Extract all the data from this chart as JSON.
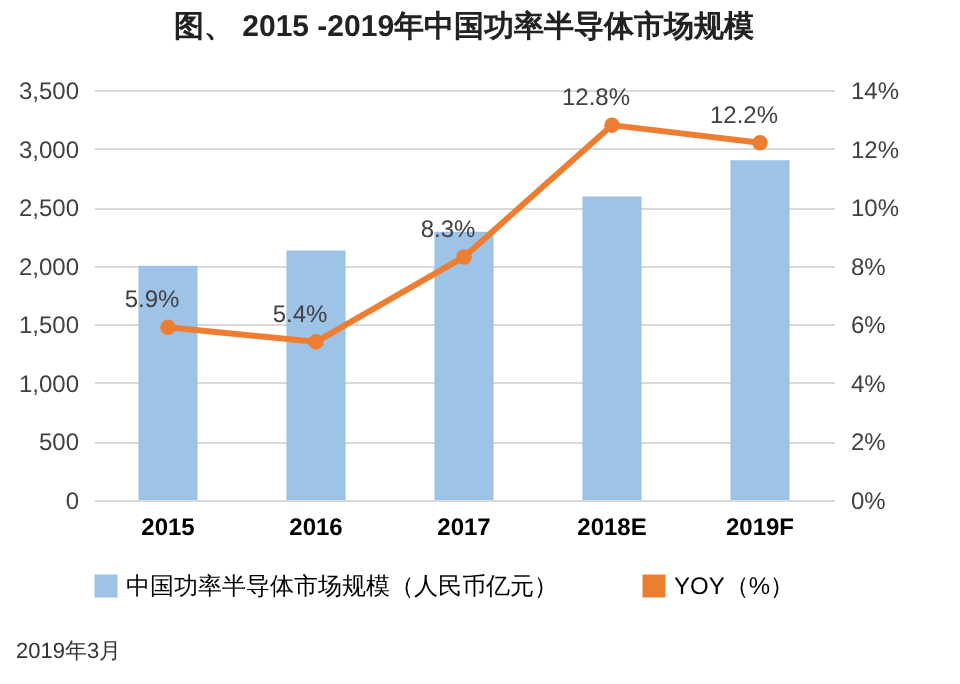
{
  "chart_data": {
    "type": "bar",
    "title": "图、 2015 -2019年中国功率半导体市场规模",
    "categories": [
      "2015",
      "2016",
      "2017",
      "2018E",
      "2019F"
    ],
    "series": [
      {
        "name": "中国功率半导体市场规模（人民币亿元）",
        "color": "#9dc3e6",
        "values": [
          2000,
          2130,
          2290,
          2590,
          2900
        ]
      },
      {
        "name": "YOY（%）",
        "type": "line",
        "axis": "y2",
        "color": "#ed7d31",
        "values": [
          5.9,
          5.4,
          8.3,
          12.8,
          12.2
        ],
        "value_labels": [
          "5.9%",
          "5.4%",
          "8.3%",
          "12.8%",
          "12.2%"
        ]
      }
    ],
    "ylim": [
      0,
      3500
    ],
    "yticks": [
      0,
      500,
      {
        "value": 1000,
        "label": "1,000"
      },
      {
        "value": 1500,
        "label": "1,500"
      },
      {
        "value": 2000,
        "label": "2,000"
      },
      {
        "value": 2500,
        "label": "2,500"
      },
      {
        "value": 3000,
        "label": "3,000"
      },
      {
        "value": 3500,
        "label": "3,500"
      }
    ],
    "y2lim": [
      0,
      14
    ],
    "y2ticks": [
      {
        "value": 0,
        "label": "0%"
      },
      {
        "value": 2,
        "label": "2%"
      },
      {
        "value": 4,
        "label": "4%"
      },
      {
        "value": 6,
        "label": "6%"
      },
      {
        "value": 8,
        "label": "8%"
      },
      {
        "value": 10,
        "label": "10%"
      },
      {
        "value": 12,
        "label": "12%"
      },
      {
        "value": 14,
        "label": "14%"
      }
    ],
    "grid": "y",
    "legend": "bottom",
    "marker": "circle",
    "line_style": "solid",
    "annotations": [
      "2019年3月"
    ]
  }
}
